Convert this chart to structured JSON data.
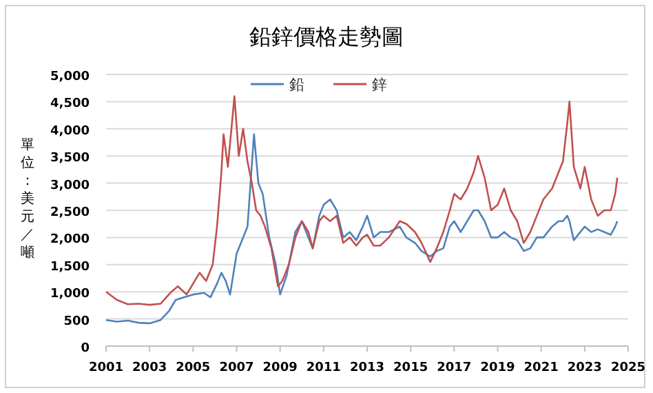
{
  "chart_data": {
    "type": "line",
    "title": "鉛鋅價格走勢圖",
    "ylabel": "單位：美元／噸",
    "xlim": [
      2001,
      2025
    ],
    "xticks": [
      2001,
      2003,
      2005,
      2007,
      2009,
      2011,
      2013,
      2015,
      2017,
      2019,
      2021,
      2023,
      2025
    ],
    "ylim": [
      0,
      5000
    ],
    "yticks": [
      0,
      500,
      {
        "value": 1000,
        "label": "1,000"
      },
      {
        "value": 1500,
        "label": "1,500"
      },
      {
        "value": 2000,
        "label": "2,000"
      },
      {
        "value": 2500,
        "label": "2,500"
      },
      {
        "value": 3000,
        "label": "3,000"
      },
      {
        "value": 3500,
        "label": "3,500"
      },
      {
        "value": 4000,
        "label": "4,000"
      },
      {
        "value": 4500,
        "label": "4,500"
      },
      {
        "value": 5000,
        "label": "5,000"
      }
    ],
    "grid": "y",
    "legend": "top",
    "line_style": "solid",
    "series": [
      {
        "name": "鉛",
        "color": "#4f81bd",
        "x": [
          2001,
          2001.5,
          2002,
          2002.5,
          2003,
          2003.5,
          2003.9,
          2004.2,
          2004.6,
          2005,
          2005.5,
          2005.8,
          2006.1,
          2006.3,
          2006.5,
          2006.7,
          2007,
          2007.3,
          2007.5,
          2007.8,
          2008,
          2008.2,
          2008.5,
          2008.8,
          2009,
          2009.3,
          2009.7,
          2010,
          2010.3,
          2010.5,
          2010.8,
          2011,
          2011.3,
          2011.6,
          2011.9,
          2012.2,
          2012.5,
          2012.8,
          2013,
          2013.3,
          2013.6,
          2014,
          2014.5,
          2014.8,
          2015.2,
          2015.5,
          2015.9,
          2016.2,
          2016.5,
          2016.8,
          2017,
          2017.3,
          2017.6,
          2017.9,
          2018.1,
          2018.4,
          2018.7,
          2019,
          2019.3,
          2019.6,
          2019.9,
          2020.2,
          2020.5,
          2020.8,
          2021.1,
          2021.5,
          2021.8,
          2022,
          2022.2,
          2022.3,
          2022.5,
          2022.8,
          2023,
          2023.3,
          2023.6,
          2023.9,
          2024.2,
          2024.4,
          2024.5
        ],
        "values": [
          480,
          450,
          470,
          430,
          420,
          480,
          650,
          850,
          900,
          950,
          980,
          900,
          1150,
          1350,
          1200,
          950,
          1700,
          2000,
          2200,
          3900,
          3000,
          2800,
          2000,
          1500,
          950,
          1300,
          2100,
          2300,
          2000,
          1800,
          2400,
          2600,
          2700,
          2500,
          2000,
          2100,
          1950,
          2200,
          2400,
          2000,
          2100,
          2100,
          2200,
          2000,
          1900,
          1750,
          1650,
          1750,
          1800,
          2200,
          2300,
          2100,
          2300,
          2500,
          2500,
          2300,
          2000,
          2000,
          2100,
          2000,
          1950,
          1750,
          1800,
          2000,
          2000,
          2200,
          2300,
          2300,
          2400,
          2300,
          1950,
          2100,
          2200,
          2100,
          2150,
          2100,
          2050,
          2200,
          2300
        ]
      },
      {
        "name": "鋅",
        "color": "#c0504d",
        "x": [
          2001,
          2001.5,
          2002,
          2002.5,
          2003,
          2003.5,
          2004,
          2004.3,
          2004.7,
          2005,
          2005.3,
          2005.6,
          2005.9,
          2006.1,
          2006.3,
          2006.4,
          2006.6,
          2006.9,
          2007.1,
          2007.3,
          2007.5,
          2007.7,
          2007.9,
          2008.1,
          2008.3,
          2008.6,
          2008.9,
          2009.1,
          2009.4,
          2009.7,
          2010,
          2010.3,
          2010.5,
          2010.8,
          2011,
          2011.3,
          2011.6,
          2011.9,
          2012.2,
          2012.5,
          2012.8,
          2013,
          2013.3,
          2013.6,
          2014,
          2014.5,
          2014.8,
          2015.2,
          2015.5,
          2015.9,
          2016.2,
          2016.5,
          2016.8,
          2017,
          2017.3,
          2017.6,
          2017.9,
          2018.1,
          2018.4,
          2018.7,
          2019,
          2019.3,
          2019.6,
          2019.9,
          2020.2,
          2020.5,
          2020.8,
          2021.1,
          2021.5,
          2021.8,
          2022,
          2022.2,
          2022.3,
          2022.5,
          2022.8,
          2023,
          2023.3,
          2023.6,
          2023.9,
          2024.2,
          2024.4,
          2024.5
        ],
        "values": [
          1000,
          850,
          770,
          780,
          760,
          780,
          1000,
          1100,
          950,
          1150,
          1350,
          1200,
          1500,
          2200,
          3200,
          3900,
          3300,
          4600,
          3500,
          4000,
          3400,
          3000,
          2500,
          2400,
          2200,
          1800,
          1100,
          1200,
          1500,
          2000,
          2300,
          2100,
          1800,
          2300,
          2400,
          2300,
          2400,
          1900,
          2000,
          1850,
          2000,
          2050,
          1850,
          1850,
          2000,
          2300,
          2250,
          2100,
          1900,
          1550,
          1800,
          2100,
          2500,
          2800,
          2700,
          2900,
          3200,
          3500,
          3100,
          2500,
          2600,
          2900,
          2500,
          2300,
          1900,
          2100,
          2400,
          2700,
          2900,
          3200,
          3400,
          4100,
          4500,
          3300,
          2900,
          3300,
          2700,
          2400,
          2500,
          2500,
          2800,
          3100
        ]
      }
    ]
  }
}
